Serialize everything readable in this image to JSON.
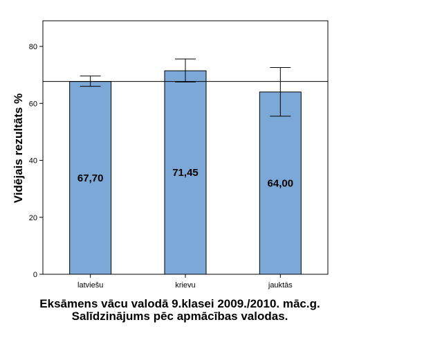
{
  "chart_data": {
    "type": "bar",
    "title": "Eksāmens vācu valodā 9.klasei 2009./2010. māc.g. Salīdzinājums pēc apmācības valodas.",
    "xlabel": "",
    "ylabel": "Vidējais rezultāts %",
    "ylim": [
      0,
      89
    ],
    "yticks": [
      "0",
      "20",
      "40",
      "60",
      "80"
    ],
    "categories": [
      "latviešu",
      "krievu",
      "jauktās"
    ],
    "values": [
      67.7,
      71.45,
      64.0
    ],
    "value_labels": [
      "67,70",
      "71,45",
      "64,00"
    ],
    "error_low": [
      66.0,
      67.5,
      55.5
    ],
    "error_high": [
      69.6,
      75.6,
      72.6
    ],
    "reference_line": 67.7,
    "bar_color": "#7ba8d6",
    "grid": false
  }
}
